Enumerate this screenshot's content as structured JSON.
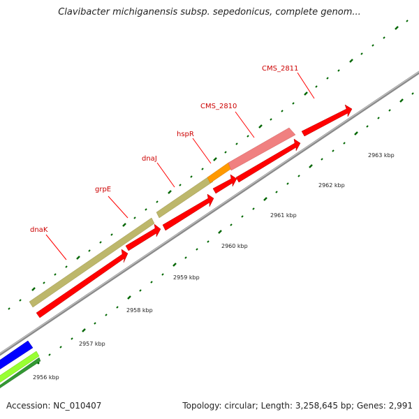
{
  "title": "Clavibacter michiganensis subsp. sepedonicus, complete genom...",
  "footer": {
    "accession": "Accession: NC_010407",
    "summary": "Topology: circular; Length: 3,258,645 bp; Genes: 2,991"
  },
  "colors": {
    "cds_red": "#ff0000",
    "khaki": "#bdb76b",
    "pink": "#f08080",
    "orange": "#ff9900",
    "blue": "#0000ff",
    "light_green": "#99ff33",
    "dark_green": "#339933",
    "backbone": "#888888",
    "label_red": "#cc0000",
    "tick_green": "#006600"
  },
  "gene_labels": [
    {
      "name": "dnaK"
    },
    {
      "name": "grpE"
    },
    {
      "name": "dnaJ"
    },
    {
      "name": "hspR"
    },
    {
      "name": "CMS_2810"
    },
    {
      "name": "CMS_2811"
    }
  ],
  "kbp_labels": [
    "2956 kbp",
    "2957 kbp",
    "2958 kbp",
    "2959 kbp",
    "2960 kbp",
    "2961 kbp",
    "2962 kbp",
    "2963 kbp"
  ]
}
